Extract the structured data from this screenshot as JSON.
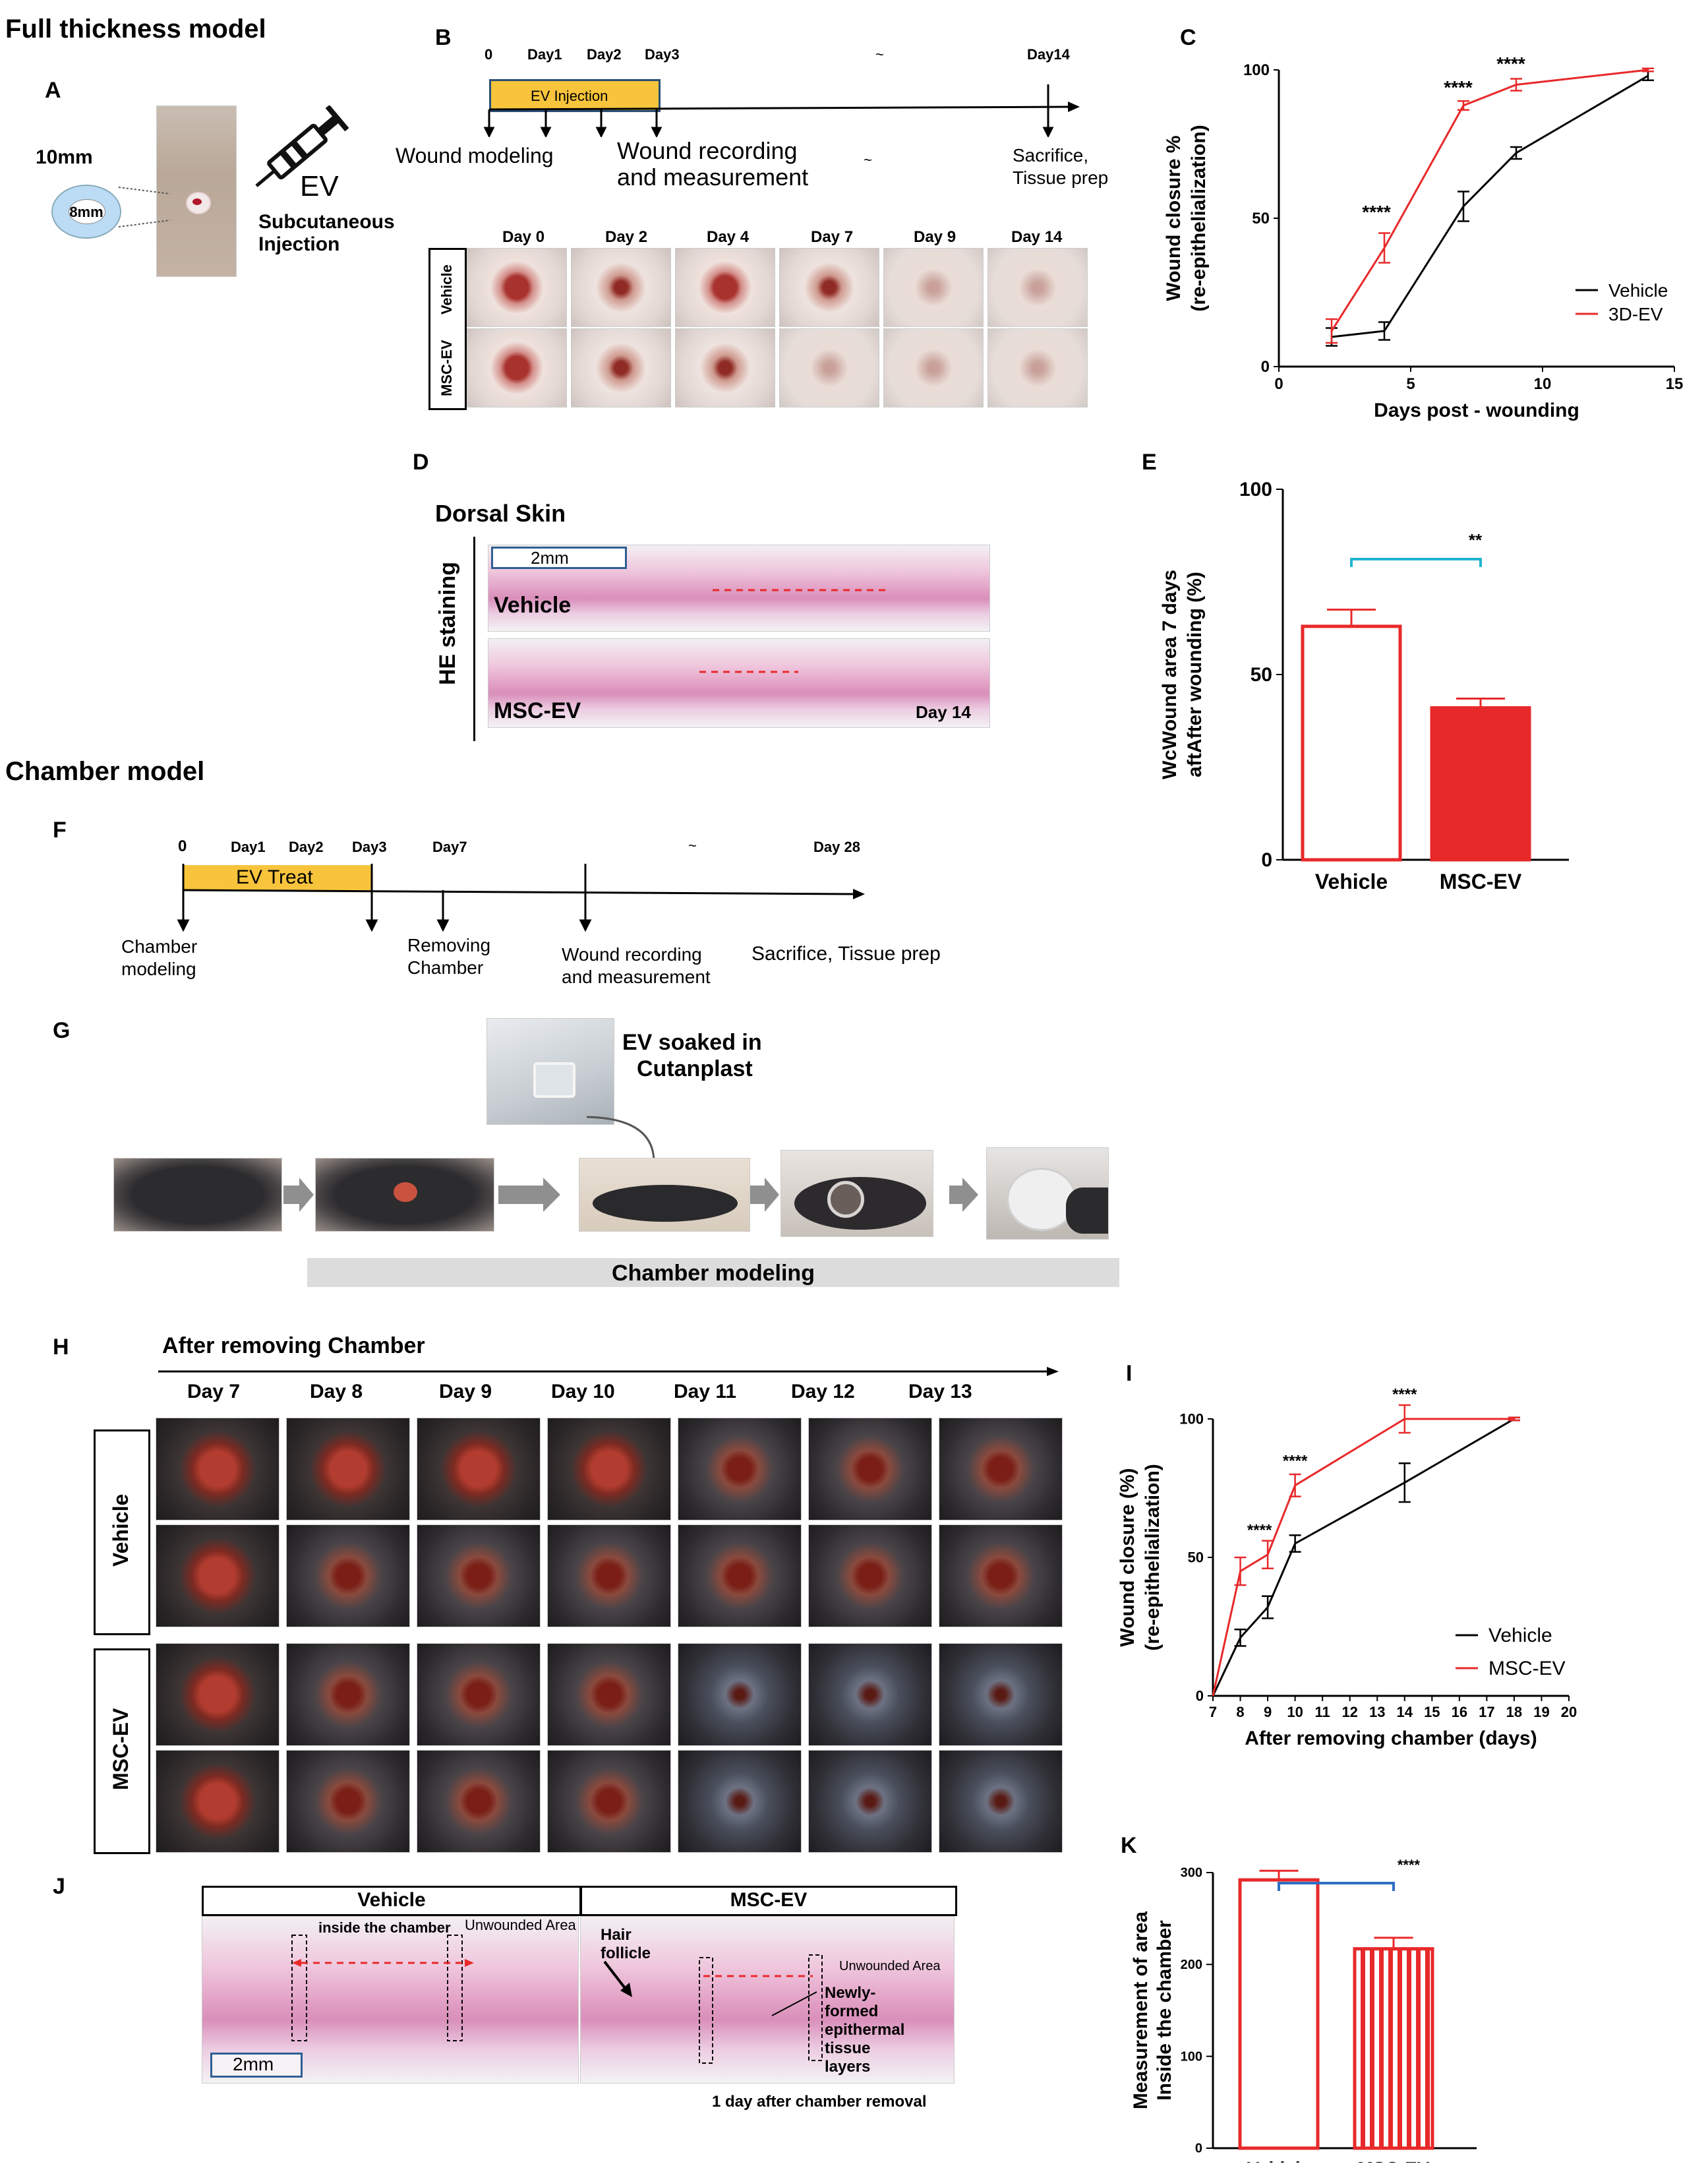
{
  "section_titles": {
    "full_thickness": "Full thickness model",
    "chamber": "Chamber model"
  },
  "panel_labels": {
    "A": "A",
    "B": "B",
    "C": "C",
    "D": "D",
    "E": "E",
    "F": "F",
    "G": "G",
    "H": "H",
    "I": "I",
    "J": "J",
    "K": "K"
  },
  "panel_a": {
    "outer_size": "10mm",
    "inner_size": "8mm",
    "ev": "EV",
    "injection_line1": "Subcutaneous",
    "injection_line2": "Injection"
  },
  "panel_b": {
    "timeline_days": [
      "0",
      "Day1",
      "Day2",
      "Day3",
      "~",
      "Day14"
    ],
    "bar_label": "EV Injection",
    "steps": [
      "Wound modeling",
      "Wound recording",
      "and measurement",
      "~",
      "Sacrifice,",
      "Tissue prep"
    ],
    "photo_days": [
      "Day 0",
      "Day 2",
      "Day 4",
      "Day 7",
      "Day 9",
      "Day 14"
    ],
    "row_labels": [
      "Vehicle",
      "MSC-EV"
    ]
  },
  "panel_d": {
    "title": "Dorsal Skin",
    "side_label": "HE staining",
    "scale": "2mm",
    "row1": "Vehicle",
    "row2": "MSC-EV",
    "day": "Day 14"
  },
  "panel_f": {
    "timeline_days": [
      "0",
      "Day1",
      "Day2",
      "Day3",
      "Day7",
      "~",
      "Day 28"
    ],
    "bar_label": "EV Treat",
    "steps": [
      "Chamber",
      "modeling",
      "Removing",
      "Chamber",
      "Wound recording",
      "and measurement",
      "Sacrifice, Tissue prep"
    ]
  },
  "panel_g": {
    "inset_line1": "EV soaked in",
    "inset_line2": "Cutanplast",
    "bar_label": "Chamber modeling"
  },
  "panel_h": {
    "header": "After removing Chamber",
    "days": [
      "Day 7",
      "Day 8",
      "Day 9",
      "Day 10",
      "Day 11",
      "Day 12",
      "Day 13"
    ],
    "groups": [
      "Vehicle",
      "MSC-EV"
    ]
  },
  "panel_j": {
    "vehicle": "Vehicle",
    "msc": "MSC-EV",
    "inside": "inside the chamber",
    "unwounded1": "Unwounded Area",
    "unwounded2": "Unwounded Area",
    "hair1": "Hair",
    "hair2": "follicle",
    "new1": "Newly-",
    "new2": "formed",
    "new3": "epithermal",
    "new4": "tissue",
    "new5": "layers",
    "scale": "2mm",
    "caption": "1 day after chamber removal"
  },
  "colors": {
    "red": "#e8292a",
    "black": "#000000",
    "teal": "#22b3d1",
    "blue": "#2f6fc4",
    "yellow": "#f7c43c"
  },
  "chart_data": [
    {
      "id": "C",
      "type": "line",
      "xlabel": "Days post - wounding",
      "ylabel_line1": "Wound closure %",
      "ylabel_line2": "(re-epithelialization)",
      "xlim": [
        0,
        15
      ],
      "ylim": [
        0,
        100
      ],
      "xticks": [
        0,
        5,
        10,
        15
      ],
      "yticks": [
        0,
        50,
        100
      ],
      "x": [
        2,
        4,
        7,
        9,
        14
      ],
      "series": [
        {
          "name": "Vehicle",
          "values": [
            10,
            12,
            54,
            72,
            98
          ],
          "err": [
            3,
            3,
            5,
            2,
            1.5
          ]
        },
        {
          "name": "3D-EV",
          "values": [
            12,
            40,
            88,
            95,
            100
          ],
          "err": [
            4,
            5,
            1.5,
            2,
            0.5
          ]
        }
      ],
      "annotations": [
        {
          "x": 3.7,
          "y": 50,
          "text": "****"
        },
        {
          "x": 6.8,
          "y": 92,
          "text": "****"
        },
        {
          "x": 8.8,
          "y": 100,
          "text": "****"
        }
      ]
    },
    {
      "id": "E",
      "type": "bar",
      "ylabel_line1": "WcWound area 7 days",
      "ylabel_line2": "aftAfter wounding (%)",
      "categories": [
        "Vehicle",
        "MSC-EV"
      ],
      "values": [
        63,
        41
      ],
      "err": [
        4.5,
        2.5
      ],
      "ylim": [
        0,
        100
      ],
      "yticks": [
        0,
        50,
        100
      ],
      "significance": "**"
    },
    {
      "id": "I",
      "type": "line",
      "xlabel": "After removing chamber (days)",
      "ylabel_line1": "Wound closure (%)",
      "ylabel_line2": "(re-epithelialization)",
      "xlim": [
        7,
        20
      ],
      "ylim": [
        0,
        100
      ],
      "xticks": [
        7,
        8,
        9,
        10,
        11,
        12,
        13,
        14,
        15,
        16,
        17,
        18,
        19,
        20
      ],
      "yticks": [
        0,
        50,
        100
      ],
      "series": [
        {
          "name": "Vehicle",
          "x": [
            7,
            8,
            9,
            10,
            14,
            18
          ],
          "values": [
            0,
            21,
            32,
            55,
            77,
            100
          ],
          "err": [
            0,
            3,
            4,
            3,
            7,
            0.5
          ]
        },
        {
          "name": "MSC-EV",
          "x": [
            7,
            8,
            9,
            10,
            14,
            18
          ],
          "values": [
            0,
            45,
            51,
            76,
            100,
            100
          ],
          "err": [
            0,
            5,
            5,
            4,
            5,
            0.5
          ]
        }
      ],
      "annotations": [
        {
          "x": 8.7,
          "y": 58,
          "text": "****"
        },
        {
          "x": 10,
          "y": 83,
          "text": "****"
        },
        {
          "x": 14,
          "y": 107,
          "text": "****"
        }
      ]
    },
    {
      "id": "K",
      "type": "bar",
      "ylabel_line1": "Measurement of area",
      "ylabel_line2": "Inside the chamber",
      "categories": [
        "Vehicle",
        "MSC-EV"
      ],
      "values": [
        292,
        217
      ],
      "err": [
        10,
        12
      ],
      "ylim": [
        0,
        300
      ],
      "yticks": [
        0,
        100,
        200,
        300
      ],
      "significance": "****"
    }
  ]
}
